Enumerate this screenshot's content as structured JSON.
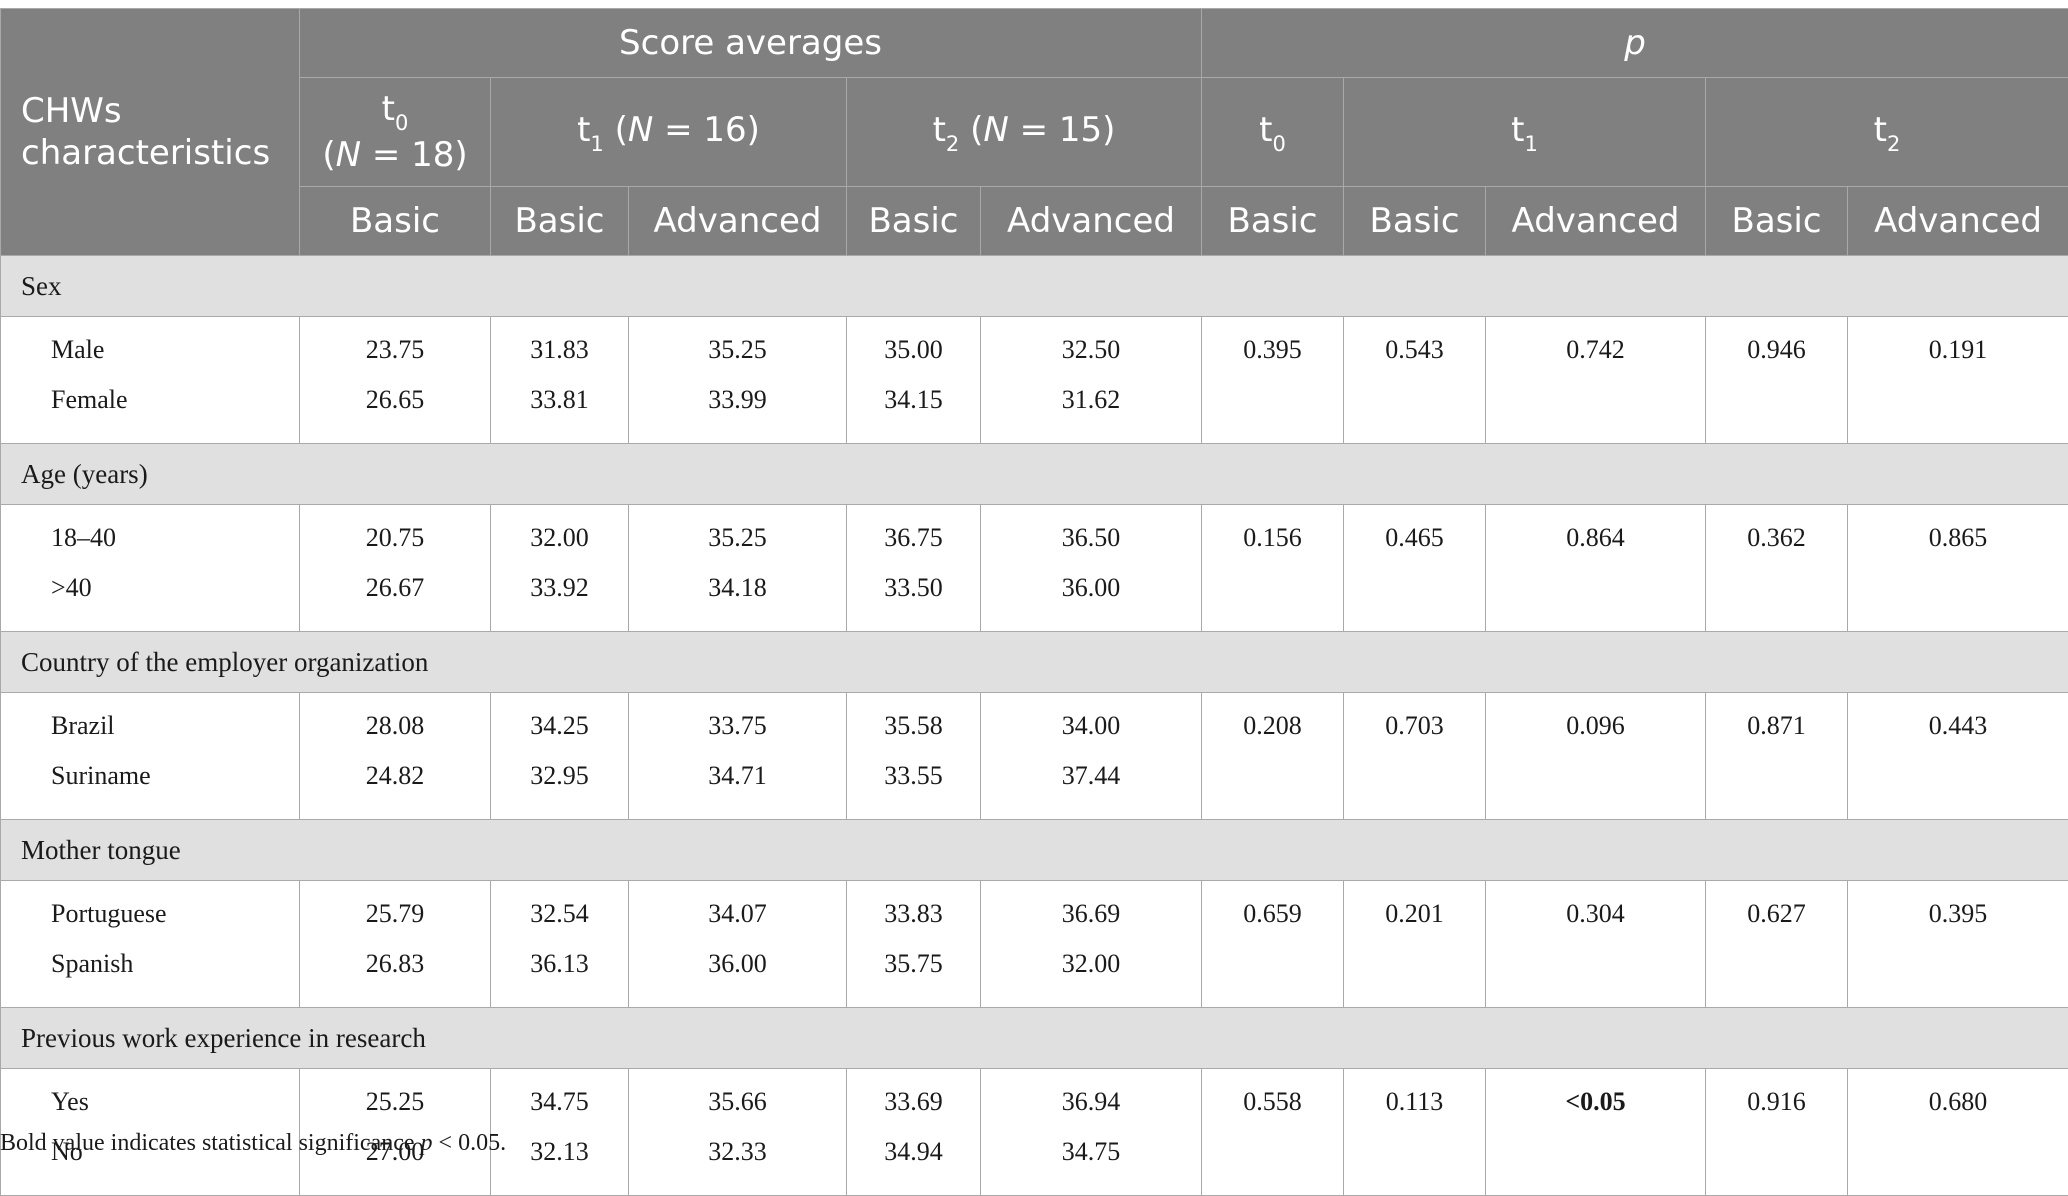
{
  "header": {
    "corner_line1": "CHWs",
    "corner_line2": "characteristics",
    "score_averages": "Score averages",
    "p": "p",
    "t0_time": {
      "t": "t",
      "sub": "0"
    },
    "t0_n": {
      "open": "(",
      "n": "N",
      "eq": " = 18)"
    },
    "t1_time": {
      "t": "t",
      "sub": "1",
      "open": " (",
      "n": "N",
      "eq": " = 16)"
    },
    "t2_time": {
      "t": "t",
      "sub": "2",
      "open": " (",
      "n": "N",
      "eq": " = 15)"
    },
    "p_t0": {
      "t": "t",
      "sub": "0"
    },
    "p_t1": {
      "t": "t",
      "sub": "1"
    },
    "p_t2": {
      "t": "t",
      "sub": "2"
    },
    "basic": "Basic",
    "advanced": "Advanced"
  },
  "sections": [
    {
      "title": "Sex",
      "labels": [
        "Male",
        "Female"
      ],
      "scores": [
        [
          "23.75",
          "31.83",
          "35.25",
          "35.00",
          "32.50"
        ],
        [
          "26.65",
          "33.81",
          "33.99",
          "34.15",
          "31.62"
        ]
      ],
      "p_values": [
        "0.395",
        "0.543",
        "0.742",
        "0.946",
        "0.191"
      ]
    },
    {
      "title": "Age (years)",
      "labels": [
        "18–40",
        ">40"
      ],
      "scores": [
        [
          "20.75",
          "32.00",
          "35.25",
          "36.75",
          "36.50"
        ],
        [
          "26.67",
          "33.92",
          "34.18",
          "33.50",
          "36.00"
        ]
      ],
      "p_values": [
        "0.156",
        "0.465",
        "0.864",
        "0.362",
        "0.865"
      ]
    },
    {
      "title": "Country of the employer organization",
      "labels": [
        "Brazil",
        "Suriname"
      ],
      "scores": [
        [
          "28.08",
          "34.25",
          "33.75",
          "35.58",
          "34.00"
        ],
        [
          "24.82",
          "32.95",
          "34.71",
          "33.55",
          "37.44"
        ]
      ],
      "p_values": [
        "0.208",
        "0.703",
        "0.096",
        "0.871",
        "0.443"
      ]
    },
    {
      "title": "Mother tongue",
      "labels": [
        "Portuguese",
        "Spanish"
      ],
      "scores": [
        [
          "25.79",
          "32.54",
          "34.07",
          "33.83",
          "36.69"
        ],
        [
          "26.83",
          "36.13",
          "36.00",
          "35.75",
          "32.00"
        ]
      ],
      "p_values": [
        "0.659",
        "0.201",
        "0.304",
        "0.627",
        "0.395"
      ]
    },
    {
      "title": "Previous work experience in research",
      "labels": [
        "Yes",
        "No"
      ],
      "scores": [
        [
          "25.25",
          "34.75",
          "35.66",
          "33.69",
          "36.94"
        ],
        [
          "27.00",
          "32.13",
          "32.33",
          "34.94",
          "34.75"
        ]
      ],
      "p_values": [
        "0.558",
        "0.113",
        "<0.05",
        "0.916",
        "0.680"
      ]
    }
  ],
  "footnote": {
    "text": "Bold value indicates statistical significance ",
    "p": "p",
    "rest": " < 0.05."
  }
}
